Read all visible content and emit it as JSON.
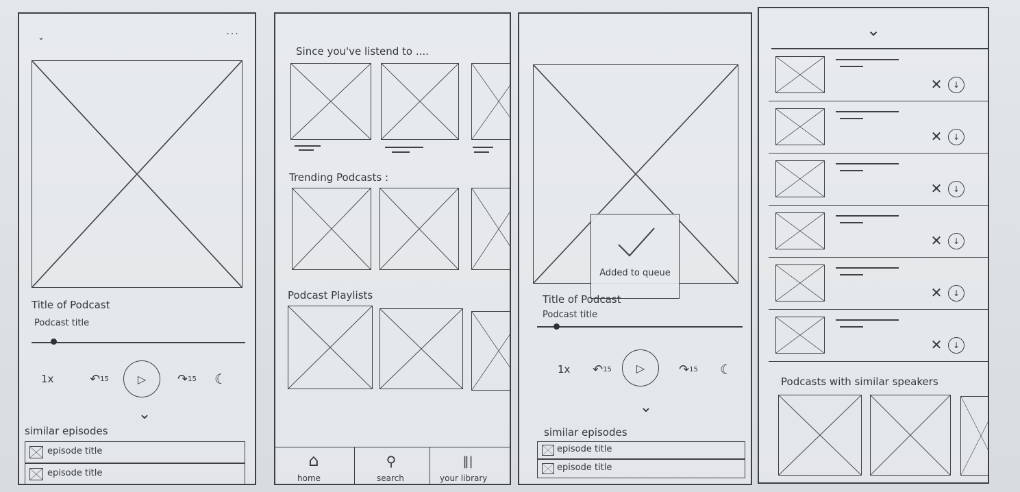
{
  "screen1": {
    "collapse_icon": "chevron-down-icon",
    "more_icon": "more-dots-icon",
    "podcast_name": "Title of Podcast",
    "episode_name": "Podcast title",
    "speed": "1x",
    "rewind": "15",
    "forward": "15",
    "similar_heading": "similar episodes",
    "episodes": [
      "episode title",
      "episode title"
    ]
  },
  "screen2": {
    "section1": "Since you've listend to ....",
    "section2": "Trending Podcasts :",
    "section3": "Podcast Playlists",
    "nav": [
      "home",
      "search",
      "your library"
    ]
  },
  "screen3": {
    "toast": "Added to queue",
    "podcast_name": "Title of Podcast",
    "episode_name": "Podcast title",
    "speed": "1x",
    "rewind": "15",
    "forward": "15",
    "similar_heading": "similar episodes",
    "episodes": [
      "episode title",
      "episode title"
    ]
  },
  "screen4": {
    "similar_speakers": "Podcasts with similar speakers",
    "queue_count": 6
  }
}
